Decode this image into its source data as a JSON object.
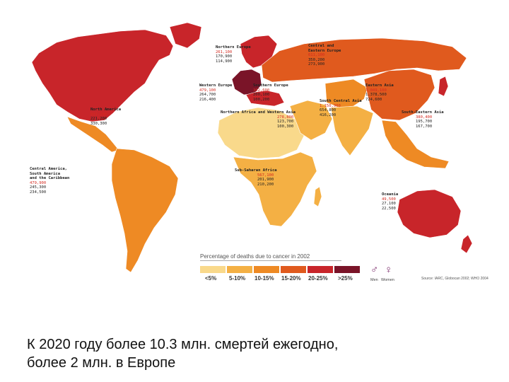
{
  "regions": [
    {
      "id": "northern-europe",
      "name": [
        "Northern Europe"
      ],
      "values": [
        "261,100",
        "170,900",
        "114,900"
      ]
    },
    {
      "id": "central-eastern-europe",
      "name": [
        "Central and",
        "Eastern Europe"
      ],
      "values": [
        "611,100",
        "350,200",
        "273,900"
      ]
    },
    {
      "id": "western-europe",
      "name": [
        "Western Europe"
      ],
      "values": [
        "479,100",
        "264,700",
        "216,400"
      ]
    },
    {
      "id": "southern-europe",
      "name": [
        "Southern Europe"
      ],
      "values": [
        "302,600",
        "200,100",
        "100,200"
      ]
    },
    {
      "id": "eastern-asia",
      "name": [
        "Eastern Asia"
      ],
      "values": [
        "3,049,100",
        "1,378,500",
        "724,600"
      ]
    },
    {
      "id": "south-central-asia",
      "name": [
        "South Central Asia"
      ],
      "values": [
        "1,150,900",
        "654,800",
        "416,200"
      ]
    },
    {
      "id": "north-africa-western-asia",
      "name": [
        "Northern Africa and Western Asia"
      ],
      "values": [
        "278,800",
        "123,700",
        "100,300"
      ]
    },
    {
      "id": "south-eastern-asia",
      "name": [
        "South-Eastern Asia"
      ],
      "values": [
        "380,400",
        "195,700",
        "167,700"
      ]
    },
    {
      "id": "north-america",
      "name": [
        "North America"
      ],
      "values": [
        "831,200",
        "221,200",
        "330,300"
      ]
    },
    {
      "id": "central-south-america",
      "name": [
        "Central America,",
        "South America",
        "and the Caribbean"
      ],
      "values": [
        "479,900",
        "245,300",
        "234,500"
      ]
    },
    {
      "id": "sub-saharan-africa",
      "name": [
        "Sub-Saharan Africa"
      ],
      "values": [
        "567,100",
        "201,900",
        "210,200"
      ]
    },
    {
      "id": "oceania",
      "name": [
        "Oceania"
      ],
      "values": [
        "49,500",
        "27,100",
        "22,500"
      ]
    }
  ],
  "legend": {
    "title": "Percentage of deaths due to cancer in 2002",
    "bins": [
      {
        "label": "<5%",
        "color": "#f9d98b"
      },
      {
        "label": "5-10%",
        "color": "#f4b044"
      },
      {
        "label": "10-15%",
        "color": "#ee8a24"
      },
      {
        "label": "15-20%",
        "color": "#e05a1e"
      },
      {
        "label": "20-25%",
        "color": "#c8252a"
      },
      {
        "label": ">25%",
        "color": "#7a1428"
      }
    ],
    "men_label": "Men",
    "women_label": "Women",
    "source": "Source: IARC, Globocan 2002; WHO 2004"
  },
  "colors": {
    "north-america": "#c8252a",
    "central-south-america": "#ee8a24",
    "europe": "#c8252a",
    "western-europe": "#7a1428",
    "russia": "#e05a1e",
    "north-africa": "#f9d98b",
    "middle-east": "#f4b044",
    "central-asia": "#ee8a24",
    "south-asia": "#f4b044",
    "east-asia": "#e05a1e",
    "se-asia": "#ee8a24",
    "africa-sub": "#f4b044",
    "oceania": "#c8252a"
  },
  "caption": {
    "line1": "К 2020 году более 10.3  млн. смертей ежегодно,",
    "line2": "более 2 млн. в Европе"
  }
}
